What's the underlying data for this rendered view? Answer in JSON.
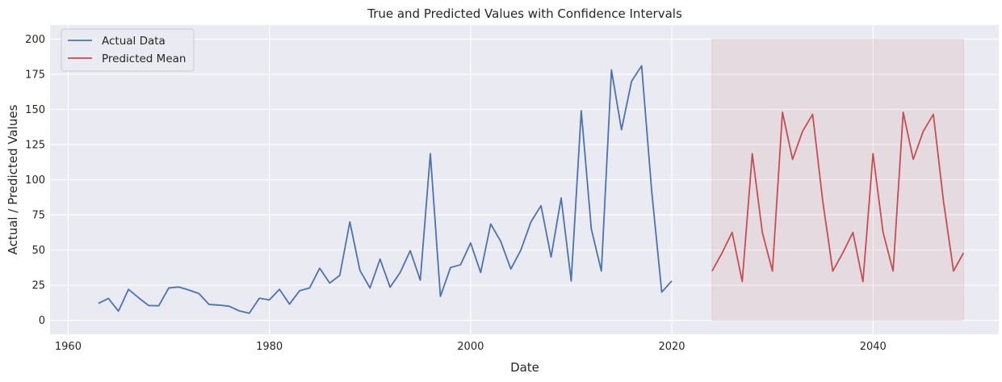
{
  "chart_data": {
    "type": "line",
    "title": "True and Predicted Values with Confidence Intervals",
    "xlabel": "Date",
    "ylabel": "Actual / Predicted Values",
    "xlim": [
      1958.2,
      2052.5
    ],
    "ylim": [
      -10,
      210
    ],
    "xticks": [
      1960,
      1980,
      2000,
      2020,
      2040
    ],
    "yticks": [
      0,
      25,
      50,
      75,
      100,
      125,
      150,
      175,
      200
    ],
    "grid": true,
    "legend": "top-left",
    "colors": {
      "background": "#EAEAF2",
      "grid": "#FFFFFF",
      "actual": "#4C72B0",
      "predicted": "#C44E52",
      "band": "#C44E52"
    },
    "series": [
      {
        "name": "Actual Data",
        "x": [
          1963,
          1964,
          1965,
          1966,
          1967,
          1968,
          1969,
          1970,
          1971,
          1972,
          1973,
          1974,
          1975,
          1976,
          1977,
          1978,
          1979,
          1980,
          1981,
          1982,
          1983,
          1984,
          1985,
          1986,
          1987,
          1988,
          1989,
          1990,
          1991,
          1992,
          1993,
          1994,
          1995,
          1996,
          1997,
          1998,
          1999,
          2000,
          2001,
          2002,
          2003,
          2004,
          2005,
          2006,
          2007,
          2008,
          2009,
          2010,
          2011,
          2012,
          2013,
          2014,
          2015,
          2016,
          2017,
          2018,
          2019,
          2020
        ],
        "y": [
          12,
          15.5,
          6.5,
          22,
          16,
          10.5,
          10.3,
          23,
          23.7,
          21.5,
          19,
          11.3,
          10.8,
          10,
          6.7,
          5,
          15.7,
          14.5,
          22,
          11.5,
          21,
          23,
          37,
          26.5,
          32,
          70,
          35.5,
          23,
          43.5,
          23.5,
          34,
          49.5,
          28.5,
          118.5,
          17,
          37.5,
          39.5,
          55,
          34,
          68.5,
          56,
          36.5,
          50,
          70,
          81.5,
          45,
          87,
          28,
          149,
          65,
          35,
          178,
          135.5,
          170,
          181,
          92,
          20,
          28
        ]
      },
      {
        "name": "Predicted Mean",
        "x": [
          2024,
          2025,
          2026,
          2027,
          2028,
          2029,
          2030,
          2031,
          2032,
          2033,
          2034,
          2035,
          2036,
          2037,
          2038,
          2039,
          2040,
          2041,
          2042,
          2043,
          2044,
          2045,
          2046,
          2047,
          2048,
          2049
        ],
        "y": [
          35,
          48,
          62.5,
          27.5,
          118.5,
          62.5,
          35,
          148,
          114.5,
          134.5,
          146.5,
          85,
          35,
          48,
          62.5,
          27.5,
          118.5,
          62.5,
          35,
          148,
          114.5,
          134.5,
          146.5,
          85,
          35,
          48
        ]
      }
    ],
    "confidence_band": {
      "x_start": 2024,
      "x_end": 2049,
      "lower": 0,
      "upper": 200
    }
  }
}
